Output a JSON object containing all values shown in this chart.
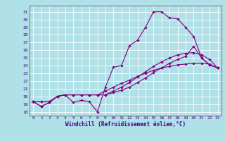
{
  "xlabel": "Windchill (Refroidissement éolien,°C)",
  "background_color": "#b0e0e8",
  "line_color": "#800080",
  "grid_color": "#ffffff",
  "xlim": [
    -0.5,
    23.5
  ],
  "ylim": [
    17.5,
    31.8
  ],
  "yticks": [
    18,
    19,
    20,
    21,
    22,
    23,
    24,
    25,
    26,
    27,
    28,
    29,
    30,
    31
  ],
  "xticks": [
    0,
    1,
    2,
    3,
    4,
    5,
    6,
    7,
    8,
    9,
    10,
    11,
    12,
    13,
    14,
    15,
    16,
    17,
    18,
    19,
    20,
    21,
    22,
    23
  ],
  "series": [
    [
      19.3,
      18.7,
      19.2,
      20.0,
      20.2,
      19.2,
      19.5,
      19.3,
      18.0,
      21.2,
      23.8,
      24.0,
      26.6,
      27.3,
      29.0,
      31.0,
      31.0,
      30.2,
      30.1,
      29.0,
      27.8,
      25.0,
      24.1,
      23.7
    ],
    [
      19.3,
      18.7,
      19.2,
      20.0,
      20.2,
      20.2,
      20.2,
      20.2,
      20.2,
      20.7,
      21.2,
      21.7,
      22.1,
      22.6,
      23.0,
      23.4,
      23.7,
      23.9,
      24.1,
      24.2,
      24.3,
      24.3,
      24.2,
      23.7
    ],
    [
      19.3,
      19.3,
      19.3,
      20.0,
      20.2,
      20.2,
      20.2,
      20.2,
      20.2,
      20.2,
      20.5,
      20.8,
      21.2,
      21.8,
      22.4,
      23.1,
      23.7,
      24.3,
      24.8,
      25.2,
      26.5,
      25.0,
      24.1,
      23.7
    ],
    [
      19.3,
      19.3,
      19.3,
      20.0,
      20.2,
      20.2,
      20.2,
      20.2,
      20.2,
      20.2,
      20.7,
      21.2,
      21.8,
      22.5,
      23.2,
      23.9,
      24.5,
      25.0,
      25.4,
      25.6,
      25.7,
      25.4,
      24.8,
      23.7
    ]
  ],
  "marker": "D",
  "markersize": 1.8,
  "linewidth": 0.8,
  "tick_fontsize": 4.5,
  "xlabel_fontsize": 5.5,
  "tick_color": "#400080",
  "spine_color": "#808080"
}
